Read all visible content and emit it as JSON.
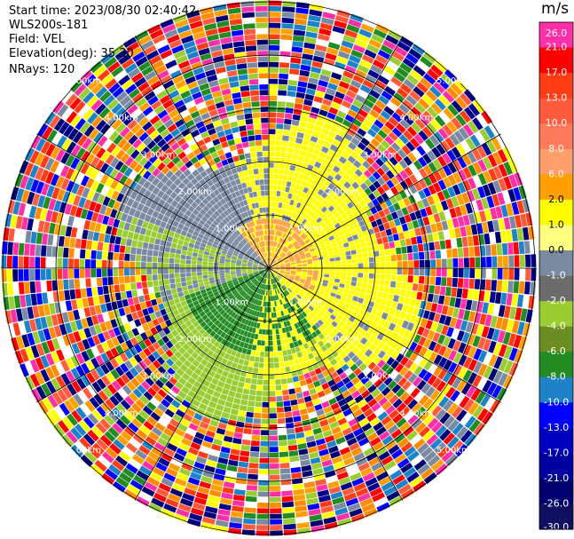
{
  "header": {
    "start_time": "Start time: 2023/08/30 02:40:42",
    "instrument": "WLS200s-181",
    "field": "Field: VEL",
    "elevation": "Elevation(deg): 35.30",
    "nrays": "NRays: 120"
  },
  "chart_data": {
    "type": "heatmap",
    "subtype": "polar-ppi",
    "field": "VEL",
    "units": "m/s",
    "n_rays": 120,
    "ring_labels": [
      "1.00km",
      "2.00km",
      "3.00km",
      "4.00km",
      "5.00km"
    ],
    "colorbar": {
      "units_label": "m/s",
      "ticks": [
        "26.0",
        "21.0",
        "17.0",
        "13.0",
        "10.0",
        "8.0",
        "6.0",
        "2.0",
        "1.0",
        "0.0",
        "-1.0",
        "-2.0",
        "-4.0",
        "-6.0",
        "-8.0",
        "-10.0",
        "-13.0",
        "-17.0",
        "-21.0",
        "-26.0",
        "-30.0"
      ],
      "colors": [
        "#ff2fa8",
        "#ff0000",
        "#ff3c14",
        "#ff5b3c",
        "#ff7a5a",
        "#ff9e6a",
        "#ffa000",
        "#ffff00",
        "#ffff80",
        "#7a8aa0",
        "#6c6c6c",
        "#9acd32",
        "#6b8e23",
        "#228b22",
        "#1e82c8",
        "#0000ff",
        "#0000c0",
        "#0000a0",
        "#000070",
        "#101060"
      ]
    },
    "description_colors": {
      "inner_near": "#ff9e3c",
      "gray": "#7a8aa0",
      "light_green": "#9acd32",
      "dark_green": "#228b22",
      "yellow": "#ffff00"
    }
  }
}
